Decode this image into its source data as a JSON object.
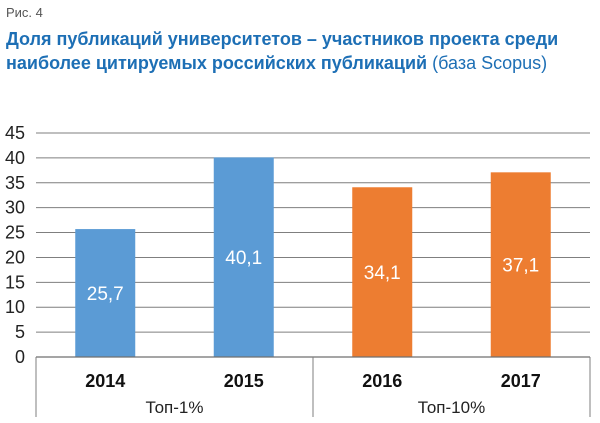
{
  "figure": {
    "label": "Рис. 4",
    "title_bold": "Доля публикаций университетов – участников проекта среди наиболее цитируемых российских публикаций",
    "title_suffix": " (база Scopus)"
  },
  "chart_data": {
    "type": "bar",
    "title": "Доля публикаций университетов – участников проекта среди наиболее цитируемых российских публикаций (база Scopus)",
    "categories": [
      "2014",
      "2015",
      "2016",
      "2017"
    ],
    "values": [
      25.7,
      40.1,
      34.1,
      37.1
    ],
    "value_labels": [
      "25,7",
      "40,1",
      "34,1",
      "37,1"
    ],
    "bar_colors": [
      "#5b9bd5",
      "#5b9bd5",
      "#ed7d31",
      "#ed7d31"
    ],
    "groups": [
      {
        "label": "Топ-1%",
        "categories": [
          "2014",
          "2015"
        ]
      },
      {
        "label": "Топ-10%",
        "categories": [
          "2016",
          "2017"
        ]
      }
    ],
    "ylim": [
      0,
      45
    ],
    "yticks": [
      0,
      5,
      10,
      15,
      20,
      25,
      30,
      35,
      40,
      45
    ],
    "grid": true,
    "xlabel": "",
    "ylabel": ""
  }
}
